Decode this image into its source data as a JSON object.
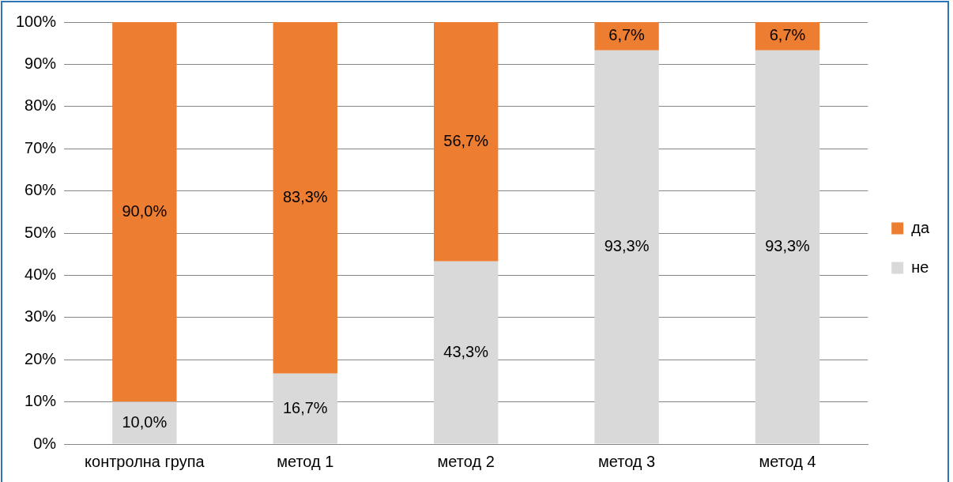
{
  "chart_data": {
    "type": "bar",
    "stacked": true,
    "categories": [
      "контролна група",
      "метод 1",
      "метод 2",
      "метод 3",
      "метод 4"
    ],
    "series": [
      {
        "name": "не",
        "color": "#d9d9d9",
        "values": [
          10.0,
          16.7,
          43.3,
          93.3,
          93.3
        ],
        "value_labels": [
          "10,0%",
          "16,7%",
          "43,3%",
          "93,3%",
          "93,3%"
        ]
      },
      {
        "name": "да",
        "color": "#ed7d31",
        "values": [
          90.0,
          83.3,
          56.7,
          6.7,
          6.7
        ],
        "value_labels": [
          "90,0%",
          "83,3%",
          "56,7%",
          "6,7%",
          "6,7%"
        ]
      }
    ],
    "ylim": [
      0,
      100
    ],
    "yticks": [
      {
        "value": 0,
        "label": "0%"
      },
      {
        "value": 10,
        "label": "10%"
      },
      {
        "value": 20,
        "label": "20%"
      },
      {
        "value": 30,
        "label": "30%"
      },
      {
        "value": 40,
        "label": "40%"
      },
      {
        "value": 50,
        "label": "50%"
      },
      {
        "value": 60,
        "label": "60%"
      },
      {
        "value": 70,
        "label": "70%"
      },
      {
        "value": 80,
        "label": "80%"
      },
      {
        "value": 90,
        "label": "90%"
      },
      {
        "value": 100,
        "label": "100%"
      }
    ],
    "grid": "y",
    "legend": "right"
  }
}
